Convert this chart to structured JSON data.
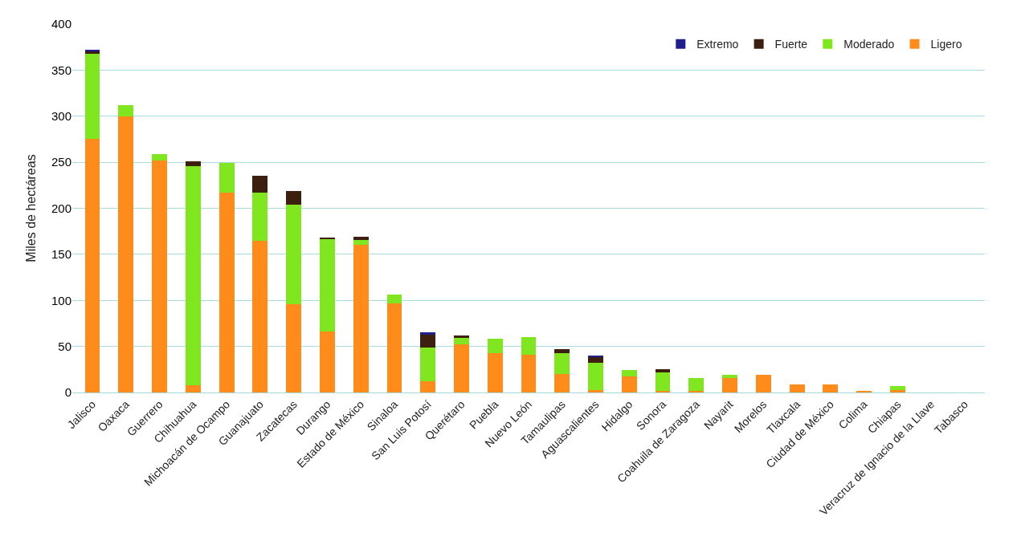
{
  "chart_data": {
    "type": "bar",
    "stacked": true,
    "ylabel": "Miles de hectáreas",
    "categories": [
      "Jalisco",
      "Oaxaca",
      "Guerrero",
      "Chihuahua",
      "Michoacán de Ocampo",
      "Guanajuato",
      "Zacatecas",
      "Durango",
      "Estado de México",
      "Sinaloa",
      "San Luis Potosí",
      "Querétaro",
      "Puebla",
      "Nuevo León",
      "Tamaulipas",
      "Aguascalientes",
      "Hidalgo",
      "Sonora",
      "Coahuila de Zaragoza",
      "Nayarit",
      "Morelos",
      "Tlaxcala",
      "Ciudad de México",
      "Colima",
      "Chiapas",
      "Veracruz de Ignacio de la Llave",
      "Tabasco"
    ],
    "series": [
      {
        "name": "Ligero",
        "color": "#ff8c1a",
        "values": [
          275,
          300,
          252,
          8,
          217,
          165,
          96,
          66,
          160,
          97,
          12,
          52,
          43,
          41,
          20,
          3,
          17,
          2,
          2,
          16,
          19,
          9,
          9,
          2,
          3,
          0,
          0
        ]
      },
      {
        "name": "Moderado",
        "color": "#7fe61f",
        "values": [
          93,
          12,
          7,
          238,
          32,
          52,
          108,
          101,
          6,
          9,
          37,
          7,
          15,
          19,
          23,
          29,
          7,
          20,
          14,
          3,
          0,
          0,
          0,
          0,
          4,
          0,
          0
        ]
      },
      {
        "name": "Fuerte",
        "color": "#3d1f0f",
        "values": [
          3,
          0,
          0,
          5,
          0,
          18,
          15,
          1,
          3,
          0,
          14,
          3,
          0,
          0,
          4,
          7,
          0,
          3,
          0,
          0,
          0,
          0,
          0,
          0,
          0,
          0,
          0
        ]
      },
      {
        "name": "Extremo",
        "color": "#1f1f8f",
        "values": [
          1,
          0,
          0,
          0,
          0,
          0,
          0,
          0,
          0,
          0,
          2,
          0,
          0,
          0,
          0,
          1,
          0,
          0,
          0,
          0,
          0,
          0,
          0,
          0,
          0,
          0,
          0
        ]
      }
    ],
    "ylim": [
      0,
      400
    ],
    "yticks": [
      0,
      50,
      100,
      150,
      200,
      250,
      300,
      350,
      400
    ],
    "grid": "y",
    "legend": "top right"
  }
}
